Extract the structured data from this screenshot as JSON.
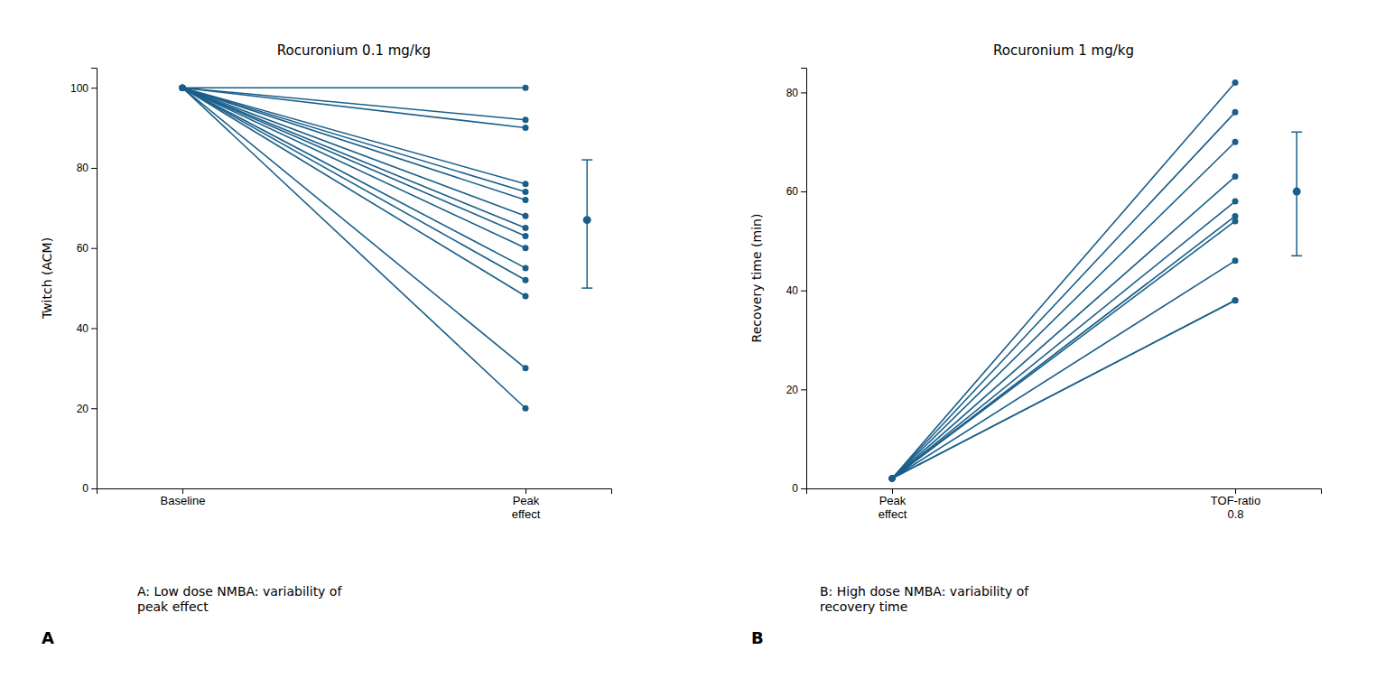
{
  "chart_data": [
    {
      "type": "slope",
      "title": "Rocuronium 0.1 mg/kg",
      "y_label": "Twitch (ACM)",
      "categories": [
        "Baseline",
        "Peak\neffect"
      ],
      "color": "#1a5f8a",
      "series": [
        {
          "values": [
            100,
            100
          ]
        },
        {
          "values": [
            100,
            92
          ]
        },
        {
          "values": [
            100,
            90
          ]
        },
        {
          "values": [
            100,
            76
          ]
        },
        {
          "values": [
            100,
            74
          ]
        },
        {
          "values": [
            100,
            72
          ]
        },
        {
          "values": [
            100,
            68
          ]
        },
        {
          "values": [
            100,
            65
          ]
        },
        {
          "values": [
            100,
            63
          ]
        },
        {
          "values": [
            100,
            60
          ]
        },
        {
          "values": [
            100,
            55
          ]
        },
        {
          "values": [
            100,
            52
          ]
        },
        {
          "values": [
            100,
            48
          ]
        },
        {
          "values": [
            100,
            30
          ]
        },
        {
          "values": [
            100,
            20
          ]
        }
      ],
      "error_bar": {
        "mean": 67,
        "lower": 50,
        "upper": 82
      },
      "ylim": [
        0,
        105
      ],
      "yticks": [
        0,
        20,
        40,
        60,
        80,
        100
      ],
      "annotations": [
        "A: Low dose NMBA: variability of\npeak effect",
        "A"
      ]
    },
    {
      "type": "slope",
      "title": "Rocuronium 1 mg/kg",
      "y_label": "Recovery time (min)",
      "categories": [
        "Peak\neffect",
        "TOF-ratio\n0.8"
      ],
      "color": "#1a5f8a",
      "series": [
        {
          "values": [
            2,
            82
          ]
        },
        {
          "values": [
            2,
            76
          ]
        },
        {
          "values": [
            2,
            70
          ]
        },
        {
          "values": [
            2,
            63
          ]
        },
        {
          "values": [
            2,
            58
          ]
        },
        {
          "values": [
            2,
            55
          ]
        },
        {
          "values": [
            2,
            54
          ]
        },
        {
          "values": [
            2,
            46
          ]
        },
        {
          "values": [
            2,
            38
          ]
        },
        {
          "values": [
            2,
            38
          ]
        }
      ],
      "error_bar": {
        "mean": 60,
        "lower": 47,
        "upper": 72
      },
      "ylim": [
        0,
        85
      ],
      "yticks": [
        0,
        20,
        40,
        60,
        80
      ],
      "annotations": [
        "B: High dose NMBA: variability of\nrecovery time",
        "B"
      ]
    }
  ]
}
